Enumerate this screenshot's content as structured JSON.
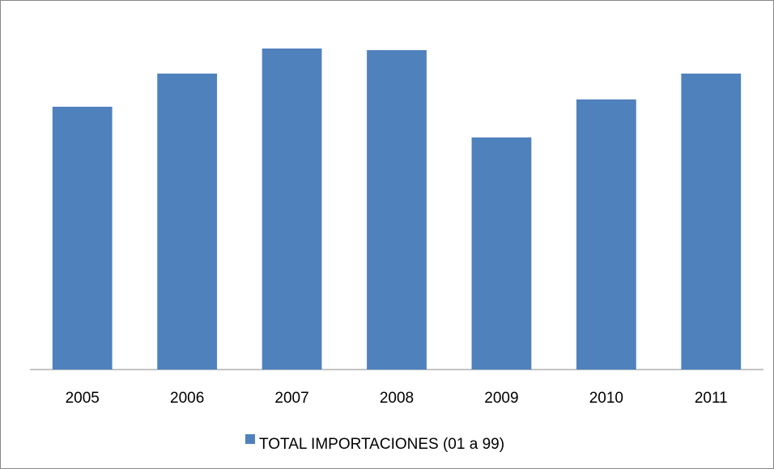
{
  "chart_data": {
    "type": "bar",
    "categories": [
      "2005",
      "2006",
      "2007",
      "2008",
      "2009",
      "2010",
      "2011"
    ],
    "series": [
      {
        "name": "TOTAL IMPORTACIONES (01 a 99)",
        "color": "#4f81bd",
        "values": [
          325,
          366,
          397,
          395,
          287,
          334,
          366
        ]
      }
    ],
    "grid": false,
    "legend": "bottom"
  }
}
